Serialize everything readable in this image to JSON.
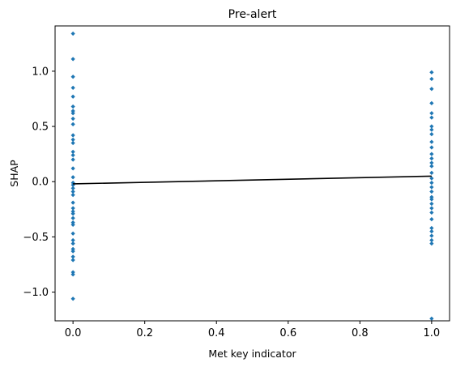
{
  "chart_data": {
    "type": "scatter",
    "title": "Pre-alert",
    "xlabel": "Met key indicator",
    "ylabel": "SHAP",
    "xlim": [
      -0.05,
      1.05
    ],
    "ylim": [
      -1.26,
      1.41
    ],
    "x_ticks": [
      0.0,
      0.2,
      0.4,
      0.6,
      0.8,
      1.0
    ],
    "x_tick_labels": [
      "0.0",
      "0.2",
      "0.4",
      "0.6",
      "0.8",
      "1.0"
    ],
    "y_ticks": [
      -1.0,
      -0.5,
      0.0,
      0.5,
      1.0
    ],
    "y_tick_labels": [
      "−1.0",
      "−0.5",
      "0.0",
      "0.5",
      "1.0"
    ],
    "grid": false,
    "series": [
      {
        "type": "scatter",
        "color": "#1f77b4",
        "points": [
          [
            0,
            1.34
          ],
          [
            0,
            1.11
          ],
          [
            0,
            0.95
          ],
          [
            0,
            0.85
          ],
          [
            0,
            0.77
          ],
          [
            0,
            0.68
          ],
          [
            0,
            0.64
          ],
          [
            0,
            0.62
          ],
          [
            0,
            0.57
          ],
          [
            0,
            0.52
          ],
          [
            0,
            0.42
          ],
          [
            0,
            0.38
          ],
          [
            0,
            0.35
          ],
          [
            0,
            0.27
          ],
          [
            0,
            0.24
          ],
          [
            0,
            0.2
          ],
          [
            0,
            0.12
          ],
          [
            0,
            0.04
          ],
          [
            0,
            -0.01
          ],
          [
            0,
            -0.03
          ],
          [
            0,
            -0.06
          ],
          [
            0,
            -0.09
          ],
          [
            0,
            -0.12
          ],
          [
            0,
            -0.19
          ],
          [
            0,
            -0.24
          ],
          [
            0,
            -0.27
          ],
          [
            0,
            -0.29
          ],
          [
            0,
            -0.33
          ],
          [
            0,
            -0.37
          ],
          [
            0,
            -0.39
          ],
          [
            0,
            -0.47
          ],
          [
            0,
            -0.53
          ],
          [
            0,
            -0.56
          ],
          [
            0,
            -0.61
          ],
          [
            0,
            -0.63
          ],
          [
            0,
            -0.68
          ],
          [
            0,
            -0.71
          ],
          [
            0,
            -0.82
          ],
          [
            0,
            -0.84
          ],
          [
            0,
            -1.06
          ],
          [
            1,
            0.99
          ],
          [
            1,
            0.93
          ],
          [
            1,
            0.84
          ],
          [
            1,
            0.71
          ],
          [
            1,
            0.62
          ],
          [
            1,
            0.58
          ],
          [
            1,
            0.5
          ],
          [
            1,
            0.47
          ],
          [
            1,
            0.43
          ],
          [
            1,
            0.36
          ],
          [
            1,
            0.31
          ],
          [
            1,
            0.25
          ],
          [
            1,
            0.21
          ],
          [
            1,
            0.17
          ],
          [
            1,
            0.14
          ],
          [
            1,
            0.08
          ],
          [
            1,
            0.03
          ],
          [
            1,
            -0.01
          ],
          [
            1,
            -0.05
          ],
          [
            1,
            -0.09
          ],
          [
            1,
            -0.14
          ],
          [
            1,
            -0.16
          ],
          [
            1,
            -0.2
          ],
          [
            1,
            -0.24
          ],
          [
            1,
            -0.28
          ],
          [
            1,
            -0.34
          ],
          [
            1,
            -0.42
          ],
          [
            1,
            -0.45
          ],
          [
            1,
            -0.49
          ],
          [
            1,
            -0.53
          ],
          [
            1,
            -0.56
          ],
          [
            1,
            -1.24
          ]
        ]
      },
      {
        "type": "line",
        "color": "#000000",
        "points": [
          [
            0,
            -0.02
          ],
          [
            1,
            0.05
          ]
        ]
      }
    ]
  }
}
